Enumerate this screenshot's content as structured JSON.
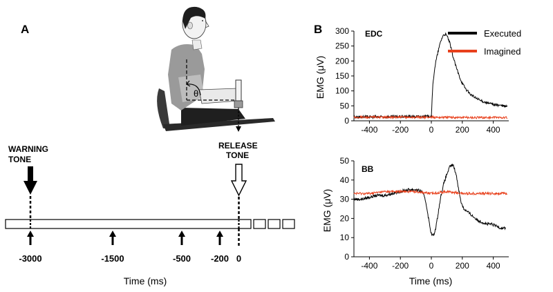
{
  "panel_a": {
    "letter": "A",
    "warning_line1": "WARNING",
    "warning_line2": "TONE",
    "release_line1": "RELEASE",
    "release_line2": "TONE",
    "angle_symbol": "θ",
    "ticks": [
      {
        "value": -3000,
        "label": "-3000"
      },
      {
        "value": -1500,
        "label": "-1500"
      },
      {
        "value": -500,
        "label": "-500"
      },
      {
        "value": -200,
        "label": "-200"
      },
      {
        "value": 0,
        "label": "0"
      }
    ],
    "xlabel": "Time (ms)",
    "icons": [
      "seated-person-illustration",
      "handle-icon",
      "filled-down-arrow-icon",
      "open-down-arrow-icon"
    ]
  },
  "panel_b": {
    "letter": "B"
  },
  "chart_data": [
    {
      "type": "line",
      "title": "EDC",
      "xlabel": "",
      "ylabel": "EMG (μV)",
      "xlim": [
        -500,
        500
      ],
      "ylim": [
        0,
        300
      ],
      "xticks": [
        -400,
        -200,
        0,
        200,
        400
      ],
      "yticks": [
        0,
        50,
        100,
        150,
        200,
        250,
        300
      ],
      "grid": false,
      "legend": {
        "position": "top-right"
      },
      "series": [
        {
          "name": "Executed",
          "color": "#000000",
          "points": [
            [
              -500,
              13
            ],
            [
              -400,
              13
            ],
            [
              -300,
              13
            ],
            [
              -200,
              14
            ],
            [
              -100,
              14
            ],
            [
              -20,
              15
            ],
            [
              0,
              16
            ],
            [
              10,
              120
            ],
            [
              20,
              170
            ],
            [
              30,
              200
            ],
            [
              45,
              235
            ],
            [
              60,
              265
            ],
            [
              75,
              285
            ],
            [
              90,
              290
            ],
            [
              105,
              280
            ],
            [
              120,
              258
            ],
            [
              140,
              215
            ],
            [
              160,
              180
            ],
            [
              180,
              150
            ],
            [
              200,
              125
            ],
            [
              225,
              105
            ],
            [
              250,
              90
            ],
            [
              275,
              80
            ],
            [
              300,
              72
            ],
            [
              325,
              66
            ],
            [
              350,
              62
            ],
            [
              375,
              58
            ],
            [
              400,
              55
            ],
            [
              425,
              53
            ],
            [
              450,
              51
            ],
            [
              475,
              49
            ],
            [
              490,
              48
            ]
          ]
        },
        {
          "name": "Imagined",
          "color": "#e8401c",
          "points": [
            [
              -500,
              12
            ],
            [
              -250,
              12
            ],
            [
              0,
              12
            ],
            [
              250,
              11
            ],
            [
              490,
              11
            ]
          ]
        }
      ]
    },
    {
      "type": "line",
      "title": "BB",
      "xlabel": "Time (ms)",
      "ylabel": "EMG (μV)",
      "xlim": [
        -500,
        500
      ],
      "ylim": [
        0,
        50
      ],
      "xticks": [
        -400,
        -200,
        0,
        200,
        400
      ],
      "yticks": [
        0,
        10,
        20,
        30,
        40,
        50
      ],
      "grid": false,
      "series": [
        {
          "name": "Executed",
          "color": "#000000",
          "points": [
            [
              -500,
              30
            ],
            [
              -450,
              30
            ],
            [
              -400,
              31
            ],
            [
              -350,
              32
            ],
            [
              -300,
              32
            ],
            [
              -250,
              33
            ],
            [
              -200,
              34
            ],
            [
              -150,
              35
            ],
            [
              -100,
              35
            ],
            [
              -60,
              34
            ],
            [
              -40,
              30
            ],
            [
              -30,
              26
            ],
            [
              -20,
              21
            ],
            [
              -10,
              16
            ],
            [
              0,
              12
            ],
            [
              10,
              11
            ],
            [
              20,
              12
            ],
            [
              35,
              18
            ],
            [
              50,
              26
            ],
            [
              65,
              33
            ],
            [
              80,
              38
            ],
            [
              100,
              43
            ],
            [
              120,
              47
            ],
            [
              140,
              48
            ],
            [
              160,
              43
            ],
            [
              175,
              36
            ],
            [
              190,
              29
            ],
            [
              210,
              25
            ],
            [
              240,
              23
            ],
            [
              270,
              21
            ],
            [
              300,
              19
            ],
            [
              330,
              18
            ],
            [
              360,
              17
            ],
            [
              390,
              17
            ],
            [
              420,
              16
            ],
            [
              450,
              15
            ],
            [
              480,
              15
            ]
          ]
        },
        {
          "name": "Imagined",
          "color": "#e8401c",
          "points": [
            [
              -500,
              33
            ],
            [
              -400,
              33
            ],
            [
              -300,
              34
            ],
            [
              -200,
              34
            ],
            [
              -100,
              34
            ],
            [
              0,
              33
            ],
            [
              100,
              34
            ],
            [
              200,
              33
            ],
            [
              300,
              33
            ],
            [
              400,
              33
            ],
            [
              490,
              33
            ]
          ]
        }
      ]
    }
  ]
}
